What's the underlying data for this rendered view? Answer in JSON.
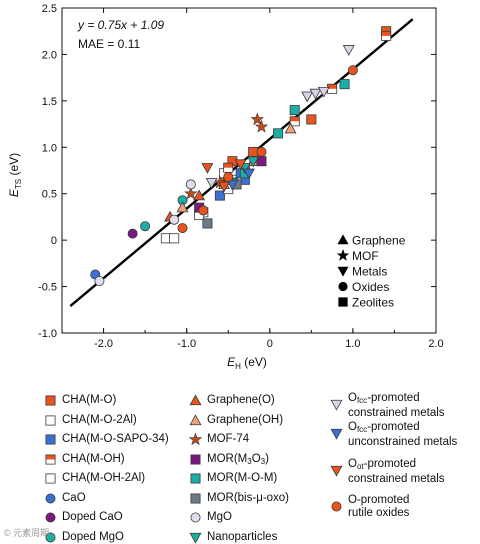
{
  "chart_data": {
    "type": "scatter",
    "xlabel_var": "E",
    "xlabel_sub": "H",
    "xlabel_unit": " (eV)",
    "ylabel_var": "E",
    "ylabel_sub": "TS",
    "ylabel_unit": " (eV)",
    "xlim": [
      -2.5,
      2.0
    ],
    "ylim": [
      -1.0,
      2.5
    ],
    "xticks": [
      "-2.0",
      "-1.0",
      "0",
      "1.0",
      "2.0"
    ],
    "xtick_values": [
      -2.0,
      -1.0,
      0,
      1.0,
      2.0
    ],
    "yticks": [
      "-1.0",
      "-0.5",
      "0",
      "0.5",
      "1.0",
      "1.5",
      "2.0",
      "2.5"
    ],
    "ytick_values": [
      -1.0,
      -0.5,
      0,
      0.5,
      1.0,
      1.5,
      2.0,
      2.5
    ],
    "fit": {
      "slope": 0.75,
      "intercept": 1.09,
      "x_range": [
        -2.4,
        1.72
      ]
    },
    "equation_text": "y = 0.75x + 1.09",
    "mae_text": "MAE = 0.11",
    "shape_legend": [
      {
        "shape": "triangle-up",
        "label": "Graphene"
      },
      {
        "shape": "star",
        "label": "MOF"
      },
      {
        "shape": "triangle-down",
        "label": "Metals"
      },
      {
        "shape": "circle",
        "label": "Oxides"
      },
      {
        "shape": "square",
        "label": "Zeolites"
      }
    ],
    "series": [
      {
        "name": "CHA(M-O)",
        "shape": "square",
        "fill": "#e8531e",
        "style": "full",
        "x": [
          -0.45,
          -0.3,
          -0.55,
          -0.2,
          0.5,
          1.4
        ],
        "y": [
          0.85,
          0.75,
          0.62,
          0.95,
          1.3,
          2.25
        ]
      },
      {
        "name": "CHA(M-O-2Al)",
        "shape": "square",
        "fill": "#ffffff",
        "style": "full",
        "x": [
          -1.25,
          -1.15,
          -0.4,
          -0.55
        ],
        "y": [
          0.02,
          0.02,
          0.65,
          0.72
        ]
      },
      {
        "name": "CHA(M-O-SAPO-34)",
        "shape": "square",
        "fill": "#3b6fd4",
        "style": "full",
        "x": [
          -0.35,
          -0.3,
          -0.6
        ],
        "y": [
          0.72,
          0.65,
          0.48
        ]
      },
      {
        "name": "CHA(M-OH)",
        "shape": "square",
        "fill": "#e8531e",
        "style": "half",
        "x": [
          -0.8,
          -0.5,
          0.3,
          1.4,
          0.75
        ],
        "y": [
          0.3,
          0.78,
          1.28,
          2.2,
          1.63
        ]
      },
      {
        "name": "CHA(M-OH-2Al)",
        "shape": "square",
        "fill": "#ffffff",
        "style": "half",
        "x": [
          -0.85,
          -0.4,
          -0.5
        ],
        "y": [
          0.27,
          0.62,
          0.55
        ]
      },
      {
        "name": "CaO",
        "shape": "circle",
        "fill": "#3b6fd4",
        "style": "full",
        "x": [
          -2.1
        ],
        "y": [
          -0.37
        ]
      },
      {
        "name": "Doped CaO",
        "shape": "circle",
        "fill": "#7b1a7e",
        "style": "full",
        "x": [
          -1.65
        ],
        "y": [
          0.07
        ]
      },
      {
        "name": "Doped MgO",
        "shape": "circle",
        "fill": "#1aaea6",
        "style": "full",
        "x": [
          -1.5,
          -1.05
        ],
        "y": [
          0.15,
          0.43
        ]
      },
      {
        "name": "Graphene(O)",
        "shape": "triangle-up",
        "fill": "#e8531e",
        "style": "full",
        "x": [
          -1.2,
          -0.85
        ],
        "y": [
          0.25,
          0.48
        ]
      },
      {
        "name": "Graphene(OH)",
        "shape": "triangle-up",
        "fill": "#f2a07a",
        "style": "full",
        "x": [
          -1.05,
          -0.55,
          0.25,
          -0.2
        ],
        "y": [
          0.35,
          0.6,
          1.2,
          0.85
        ]
      },
      {
        "name": "MOF-74",
        "shape": "star",
        "fill": "#c24a1c",
        "style": "full",
        "x": [
          -0.95,
          -0.15,
          -0.1,
          -0.6
        ],
        "y": [
          0.5,
          1.3,
          1.22,
          0.62
        ]
      },
      {
        "name": "MOR(M3O3)",
        "shape": "square",
        "fill": "#7b1a7e",
        "style": "full",
        "x": [
          -0.1,
          -0.85
        ],
        "y": [
          0.85,
          0.35
        ]
      },
      {
        "name": "MOR(M-O-M)",
        "shape": "square",
        "fill": "#1aaea6",
        "style": "full",
        "x": [
          0.1,
          0.9,
          -0.3,
          0.3
        ],
        "y": [
          1.15,
          1.68,
          0.72,
          1.4
        ]
      },
      {
        "name": "MOR(bis-μ-oxo)",
        "shape": "square",
        "fill": "#6b7a87",
        "style": "full",
        "x": [
          -0.75,
          -0.4
        ],
        "y": [
          0.18,
          0.6
        ]
      },
      {
        "name": "MgO",
        "shape": "circle",
        "fill": "#e2dcf0",
        "style": "full",
        "x": [
          -2.05,
          -0.95,
          -1.15
        ],
        "y": [
          -0.44,
          0.6,
          0.22
        ]
      },
      {
        "name": "Nanoparticles",
        "shape": "triangle-down",
        "fill": "#1aaea6",
        "style": "full",
        "x": [
          -0.3,
          -0.45,
          -0.2
        ],
        "y": [
          0.78,
          0.62,
          0.85
        ]
      },
      {
        "name": "Ofcc-promoted constrained metals",
        "shape": "triangle-down",
        "fill": "#d9d4e6",
        "style": "full",
        "x": [
          0.45,
          0.55,
          0.65,
          0.95,
          -0.7
        ],
        "y": [
          1.55,
          1.58,
          1.6,
          2.05,
          0.62
        ]
      },
      {
        "name": "Ofcc-promoted unconstrained metals",
        "shape": "triangle-down",
        "fill": "#3b6fd4",
        "style": "full",
        "x": [
          -0.25,
          -0.45
        ],
        "y": [
          0.72,
          0.6
        ]
      },
      {
        "name": "Oot-promoted constrained metals",
        "shape": "triangle-down",
        "fill": "#e8531e",
        "style": "full",
        "x": [
          -0.75,
          -0.35,
          -0.55
        ],
        "y": [
          0.78,
          0.82,
          0.58
        ]
      },
      {
        "name": "O-promoted rutile oxides",
        "shape": "circle",
        "fill": "#e8531e",
        "style": "full",
        "x": [
          -1.05,
          -0.8,
          -0.1,
          1.0,
          -0.5
        ],
        "y": [
          0.13,
          0.32,
          0.95,
          1.83,
          0.68
        ]
      }
    ]
  },
  "legend": [
    {
      "label": "CHA(M-O)",
      "series": 0
    },
    {
      "label": "CHA(M-O-2Al)",
      "series": 1
    },
    {
      "label": "CHA(M-O-SAPO-34)",
      "series": 2
    },
    {
      "label": "CHA(M-OH)",
      "series": 3
    },
    {
      "label": "CHA(M-OH-2Al)",
      "series": 4
    },
    {
      "label": "CaO",
      "series": 5
    },
    {
      "label": "Doped CaO",
      "series": 6
    },
    {
      "label": "Doped MgO",
      "series": 7
    },
    {
      "label": "Graphene(O)",
      "series": 8
    },
    {
      "label": "Graphene(OH)",
      "series": 9
    },
    {
      "label": "MOF-74",
      "series": 10
    },
    {
      "label_pre": "MOR(M",
      "label_sub1": "3",
      "label_mid": "O",
      "label_sub2": "3",
      "label_post": ")",
      "series": 11
    },
    {
      "label": "MOR(M-O-M)",
      "series": 12
    },
    {
      "label": "MOR(bis-μ-oxo)",
      "series": 13
    },
    {
      "label": "MgO",
      "series": 14
    },
    {
      "label": "Nanoparticles",
      "series": 15
    },
    {
      "line1_pre": "O",
      "line1_sub": "fcc",
      "line1_post": "-promoted",
      "line2": "constrained metals",
      "series": 16
    },
    {
      "line1_pre": "O",
      "line1_sub": "fcc",
      "line1_post": "-promoted",
      "line2": "unconstrained metals",
      "series": 17
    },
    {
      "line1_pre": "O",
      "line1_sub": "ot",
      "line1_post": "-promoted",
      "line2": "constrained metals",
      "series": 18
    },
    {
      "line1_pre": "O-promoted",
      "line2": "rutile oxides",
      "series": 19
    }
  ],
  "watermark": "© 元素周期"
}
